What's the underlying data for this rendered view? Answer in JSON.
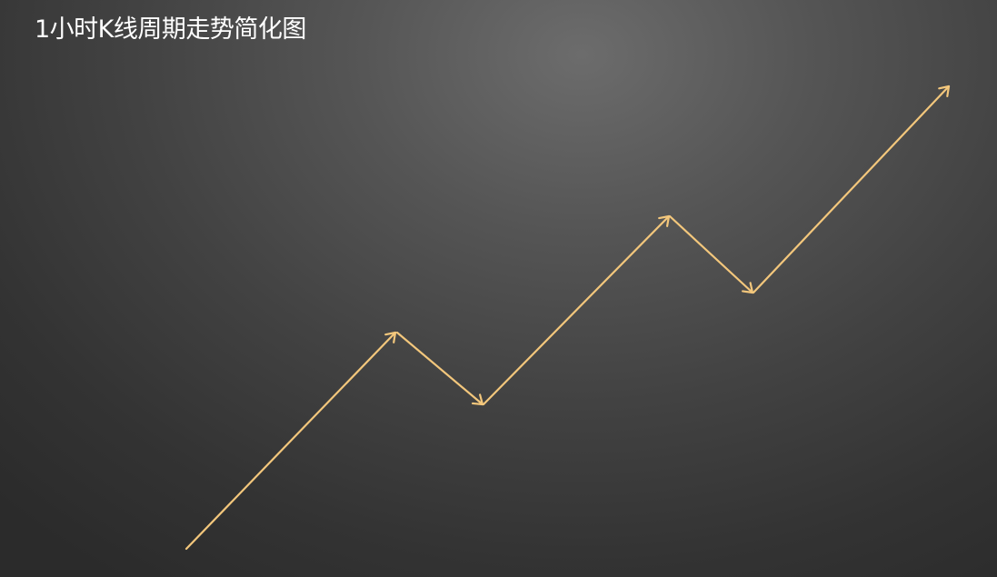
{
  "title": "1小时K线周期走势简化图",
  "colors": {
    "arrow": "#f3c77c",
    "title": "#ffffff"
  },
  "path_description_label": ""
}
